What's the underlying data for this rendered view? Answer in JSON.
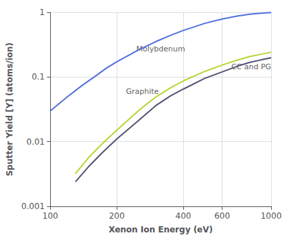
{
  "chart_data": {
    "type": "line",
    "xlabel": "Xenon Ion Energy (eV)",
    "ylabel": "Sputter Yield [Y] (atoms/ion)",
    "log": true,
    "grid": true,
    "xlim": [
      100,
      1000
    ],
    "ylim": [
      0.001,
      1.0
    ],
    "xticks": [
      100,
      200,
      400,
      600,
      1000
    ],
    "yticks": [
      0.001,
      0.01,
      0.1,
      1
    ],
    "series": [
      {
        "name": "Molybdenum",
        "x": [
          100,
          120,
          140,
          160,
          180,
          200,
          250,
          300,
          350,
          400,
          500,
          600,
          700,
          800,
          900,
          1000
        ],
        "values": [
          0.03,
          0.05,
          0.075,
          0.103,
          0.138,
          0.172,
          0.26,
          0.352,
          0.44,
          0.525,
          0.675,
          0.79,
          0.875,
          0.935,
          0.97,
          0.995
        ]
      },
      {
        "name": "Graphite",
        "x": [
          130,
          150,
          170,
          200,
          250,
          300,
          350,
          400,
          500,
          600,
          700,
          800,
          900,
          1000
        ],
        "values": [
          0.0032,
          0.0058,
          0.009,
          0.015,
          0.03,
          0.049,
          0.068,
          0.087,
          0.122,
          0.153,
          0.182,
          0.207,
          0.225,
          0.242
        ]
      },
      {
        "name": "CC and PG",
        "x": [
          130,
          150,
          170,
          200,
          250,
          300,
          350,
          400,
          500,
          600,
          700,
          800,
          900,
          1000
        ],
        "values": [
          0.0024,
          0.0042,
          0.0065,
          0.011,
          0.021,
          0.036,
          0.051,
          0.065,
          0.095,
          0.12,
          0.146,
          0.168,
          0.184,
          0.198
        ]
      }
    ],
    "annotations": [
      {
        "text": "Molybdenum",
        "x": 245,
        "y": 0.27
      },
      {
        "text": "Graphite",
        "x": 220,
        "y": 0.06
      },
      {
        "text": "CC and PG",
        "x": 660,
        "y": 0.142
      }
    ]
  }
}
